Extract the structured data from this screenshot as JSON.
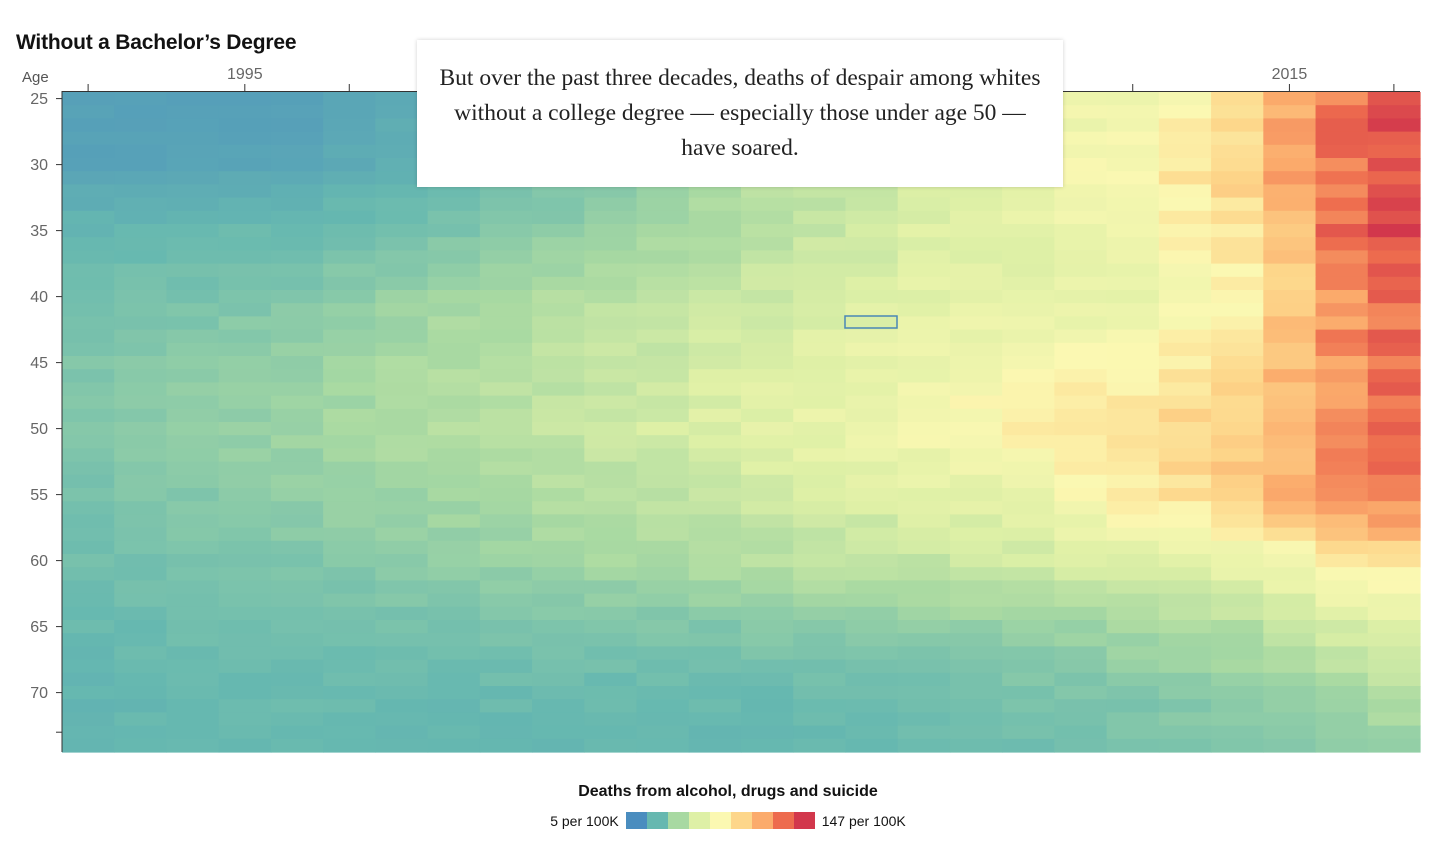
{
  "title": "Without a Bachelor’s Degree",
  "annotation": "But over the past three decades, deaths of despair among whites without a college degree — especially those under age 50 — have soared.",
  "legend": {
    "title": "Deaths from alcohol, drugs and suicide",
    "min_label": "5 per 100K",
    "max_label": "147 per 100K",
    "colors": [
      "#4a8dbf",
      "#66b8b0",
      "#a8d9a2",
      "#def0a6",
      "#fbf8b2",
      "#fdd68a",
      "#fbab6c",
      "#ed6b4e",
      "#d2374c"
    ]
  },
  "chart_data": {
    "type": "heatmap",
    "title": "Without a Bachelor’s Degree",
    "ylabel": "Age",
    "x_tick_labels": [
      "1995",
      "2015"
    ],
    "y_tick_labels": [
      "25",
      "30",
      "35",
      "40",
      "45",
      "50",
      "55",
      "60",
      "65",
      "70"
    ],
    "x_range": [
      1992,
      2017
    ],
    "y_range": [
      25,
      74
    ],
    "value_unit": "deaths per 100K",
    "value_range": [
      5,
      147
    ],
    "anchor_years": [
      1992,
      1996,
      2000,
      2004,
      2008,
      2010,
      2012,
      2014,
      2015,
      2016,
      2017
    ],
    "anchor_ages": [
      25,
      30,
      35,
      40,
      45,
      50,
      55,
      60,
      65,
      70,
      74
    ],
    "anchor_values": [
      [
        13,
        13,
        22,
        40,
        55,
        65,
        70,
        85,
        105,
        125,
        138
      ],
      [
        14,
        15,
        24,
        40,
        55,
        66,
        76,
        95,
        115,
        128,
        138
      ],
      [
        22,
        24,
        30,
        42,
        58,
        62,
        70,
        85,
        100,
        130,
        145
      ],
      [
        26,
        30,
        42,
        50,
        62,
        62,
        66,
        78,
        95,
        120,
        130
      ],
      [
        30,
        36,
        45,
        55,
        67,
        74,
        78,
        88,
        104,
        118,
        128
      ],
      [
        30,
        38,
        46,
        58,
        72,
        80,
        88,
        98,
        110,
        120,
        130
      ],
      [
        28,
        34,
        42,
        50,
        60,
        66,
        80,
        96,
        108,
        120,
        128
      ],
      [
        26,
        30,
        36,
        44,
        50,
        54,
        60,
        66,
        72,
        80,
        86
      ],
      [
        24,
        26,
        28,
        30,
        34,
        36,
        40,
        44,
        50,
        56,
        60
      ],
      [
        22,
        24,
        24,
        24,
        26,
        28,
        30,
        34,
        36,
        40,
        44
      ],
      [
        22,
        24,
        22,
        22,
        24,
        26,
        28,
        30,
        32,
        34,
        36
      ]
    ]
  }
}
